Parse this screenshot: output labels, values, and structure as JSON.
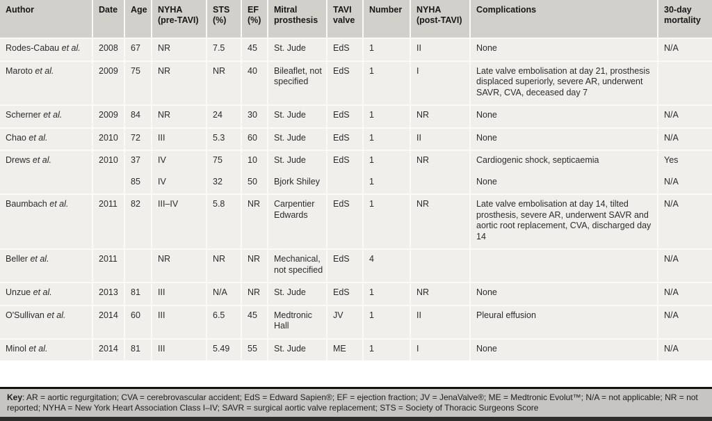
{
  "table": {
    "columns": [
      "Author",
      "Date",
      "Age",
      "NYHA (pre-TAVI)",
      "STS (%)",
      "EF (%)",
      "Mitral prosthesis",
      "TAVI valve",
      "Number",
      "NYHA (post-TAVI)",
      "Complications",
      "30-day mortality"
    ],
    "rows": [
      {
        "continuation": false,
        "author": "Rodes-Cabau",
        "etal": "et al.",
        "date": "2008",
        "age": "67",
        "nyha_pre": "NR",
        "sts": "7.5",
        "ef": "45",
        "mitral": "St. Jude",
        "valve": "EdS",
        "number": "1",
        "nyha_post": "II",
        "complications": "None",
        "mortality": "N/A"
      },
      {
        "continuation": false,
        "author": "Maroto",
        "etal": "et al.",
        "date": "2009",
        "age": "75",
        "nyha_pre": "NR",
        "sts": "NR",
        "ef": "40",
        "mitral": "Bileaflet, not specified",
        "valve": "EdS",
        "number": "1",
        "nyha_post": "I",
        "complications": "Late valve embolisation at day 21, prosthesis displaced superiorly, severe AR, underwent SAVR, CVA, deceased day 7",
        "mortality": ""
      },
      {
        "continuation": false,
        "author": "Scherner",
        "etal": "et al.",
        "date": "2009",
        "age": "84",
        "nyha_pre": "NR",
        "sts": "24",
        "ef": "30",
        "mitral": "St. Jude",
        "valve": "EdS",
        "number": "1",
        "nyha_post": "NR",
        "complications": "None",
        "mortality": "N/A"
      },
      {
        "continuation": false,
        "author": "Chao",
        "etal": "et al.",
        "date": "2010",
        "age": "72",
        "nyha_pre": "III",
        "sts": "5.3",
        "ef": "60",
        "mitral": "St. Jude",
        "valve": "EdS",
        "number": "1",
        "nyha_post": "II",
        "complications": "None",
        "mortality": "N/A"
      },
      {
        "continuation": false,
        "author": "Drews",
        "etal": "et al.",
        "date": "2010",
        "age": "37",
        "nyha_pre": "IV",
        "sts": "75",
        "ef": "10",
        "mitral": "St. Jude",
        "valve": "EdS",
        "number": "1",
        "nyha_post": "NR",
        "complications": "Cardiogenic shock, septicaemia",
        "mortality": "Yes"
      },
      {
        "continuation": true,
        "author": "",
        "etal": "",
        "date": "",
        "age": "85",
        "nyha_pre": "IV",
        "sts": "32",
        "ef": "50",
        "mitral": "Bjork Shiley",
        "valve": "",
        "number": "1",
        "nyha_post": "",
        "complications": "None",
        "mortality": "N/A"
      },
      {
        "continuation": false,
        "author": "Baumbach",
        "etal": "et al.",
        "date": "2011",
        "age": "82",
        "nyha_pre": "III–IV",
        "sts": "5.8",
        "ef": "NR",
        "mitral": "Carpentier Edwards",
        "valve": "EdS",
        "number": "1",
        "nyha_post": "NR",
        "complications": "Late valve embolisation at day 14, tilted prosthesis, severe AR, underwent SAVR and aortic root replacement, CVA, discharged day 14",
        "mortality": "N/A"
      },
      {
        "continuation": false,
        "author": "Beller",
        "etal": "et al.",
        "date": "2011",
        "age": "",
        "nyha_pre": "NR",
        "sts": "NR",
        "ef": "NR",
        "mitral": "Mechanical, not specified",
        "valve": "EdS",
        "number": "4",
        "nyha_post": "",
        "complications": "",
        "mortality": "N/A"
      },
      {
        "continuation": false,
        "author": "Unzue",
        "etal": "et al.",
        "date": "2013",
        "age": "81",
        "nyha_pre": "III",
        "sts": "N/A",
        "ef": "NR",
        "mitral": "St. Jude",
        "valve": "EdS",
        "number": "1",
        "nyha_post": "NR",
        "complications": "None",
        "mortality": "N/A"
      },
      {
        "continuation": false,
        "author": "O'Sullivan",
        "etal": "et al.",
        "date": "2014",
        "age": "60",
        "nyha_pre": "III",
        "sts": "6.5",
        "ef": "45",
        "mitral": "Medtronic Hall",
        "valve": "JV",
        "number": "1",
        "nyha_post": "II",
        "complications": "Pleural effusion",
        "mortality": "N/A"
      },
      {
        "continuation": false,
        "author": "Minol",
        "etal": "et al.",
        "date": "2014",
        "age": "81",
        "nyha_pre": "III",
        "sts": "5.49",
        "ef": "55",
        "mitral": "St. Jude",
        "valve": "ME",
        "number": "1",
        "nyha_post": "I",
        "complications": "None",
        "mortality": "N/A"
      }
    ]
  },
  "footer": {
    "key_label": "Key",
    "key_text": ": AR = aortic regurgitation; CVA = cerebrovascular accident; EdS = Edward Sapien®; EF = ejection fraction; JV = JenaValve®; ME = Medtronic Evolut™; N/A = not applicable; NR = not reported; NYHA = New York Heart Association Class I–IV; SAVR = surgical aortic valve replacement; STS = Society of Thoracic Surgeons Score"
  },
  "colors": {
    "header_bg": "#d2d0cb",
    "row_bg": "#f0efec",
    "grid_line": "#fbfaf7",
    "key_bg": "#c6c5c3",
    "bar": "#14120f",
    "text": "#2b2b2b"
  }
}
